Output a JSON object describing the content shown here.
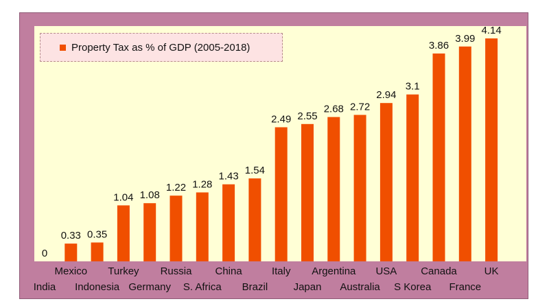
{
  "chart_data": {
    "type": "bar",
    "categories": [
      "India",
      "Mexico",
      "Indonesia",
      "Turkey",
      "Germany",
      "Russia",
      "S. Africa",
      "China",
      "Brazil",
      "Italy",
      "Japan",
      "Argentina",
      "Australia",
      "USA",
      "S Korea",
      "Canada",
      "France",
      "UK"
    ],
    "values": [
      0,
      0.33,
      0.35,
      1.04,
      1.08,
      1.22,
      1.28,
      1.43,
      1.54,
      2.49,
      2.55,
      2.68,
      2.72,
      2.94,
      3.1,
      3.86,
      3.99,
      4.14
    ],
    "value_labels": [
      "0",
      "0.33",
      "0.35",
      "1.04",
      "1.08",
      "1.22",
      "1.28",
      "1.43",
      "1.54",
      "2.49",
      "2.55",
      "2.68",
      "2.72",
      "2.94",
      "3.1",
      "3.86",
      "3.99",
      "4.14"
    ],
    "series": [
      {
        "name": "Property Tax as % of GDP (2005-2018)"
      }
    ],
    "title": "",
    "xlabel": "",
    "ylabel": "",
    "ylim": [
      0,
      4.3
    ],
    "legend_position": "top-left",
    "grid": false,
    "bar_color": "#f04f00",
    "plot_background": "#ffffd6",
    "frame_color": "#c07e9f"
  }
}
